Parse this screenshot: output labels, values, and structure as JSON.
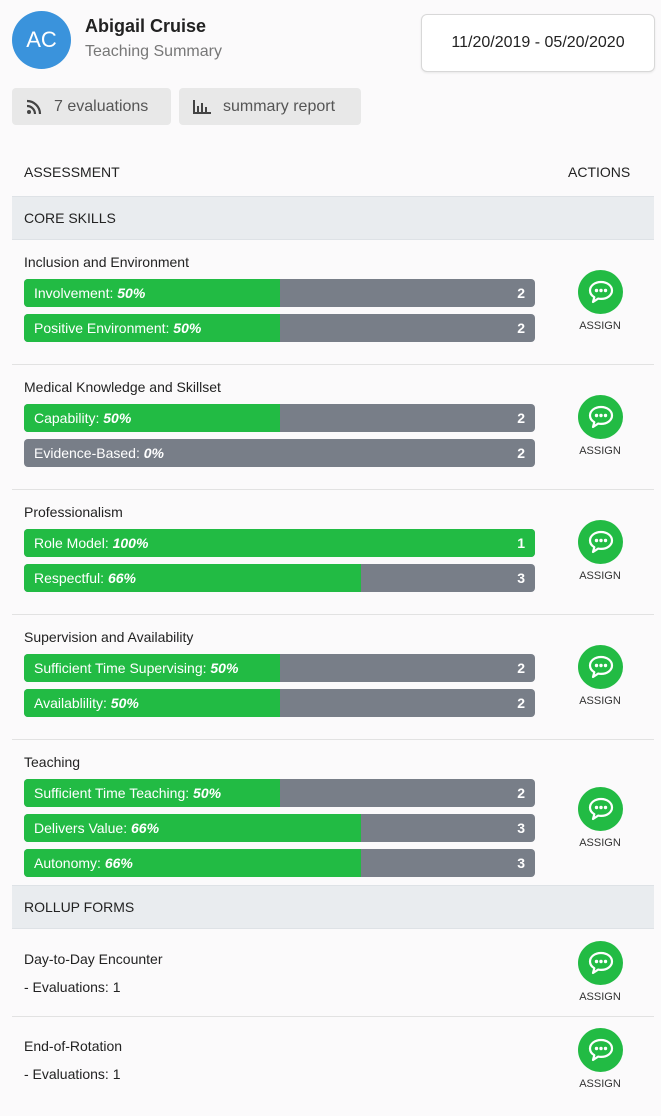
{
  "profile": {
    "initials": "AC",
    "name": "Abigail Cruise",
    "subtitle": "Teaching Summary",
    "date_range": "11/20/2019 - 05/20/2020"
  },
  "chips": {
    "evaluations": "7 evaluations",
    "report": "summary report"
  },
  "table": {
    "col_assessment": "ASSESSMENT",
    "col_actions": "ACTIONS"
  },
  "sections": {
    "core": "CORE SKILLS",
    "rollup": "ROLLUP FORMS"
  },
  "assign_label": "ASSIGN",
  "categories": [
    {
      "title": "Inclusion and Environment",
      "bars": [
        {
          "label": "Involvement:",
          "pct": "50%",
          "fraction": 0.5,
          "count": "2"
        },
        {
          "label": "Positive Environment:",
          "pct": "50%",
          "fraction": 0.5,
          "count": "2"
        }
      ]
    },
    {
      "title": "Medical Knowledge and Skillset",
      "bars": [
        {
          "label": "Capability:",
          "pct": "50%",
          "fraction": 0.5,
          "count": "2"
        },
        {
          "label": "Evidence-Based:",
          "pct": "0%",
          "fraction": 0,
          "count": "2"
        }
      ]
    },
    {
      "title": "Professionalism",
      "bars": [
        {
          "label": "Role Model:",
          "pct": "100%",
          "fraction": 1,
          "count": "1"
        },
        {
          "label": "Respectful:",
          "pct": "66%",
          "fraction": 0.66,
          "count": "3"
        }
      ]
    },
    {
      "title": "Supervision and Availability",
      "bars": [
        {
          "label": "Sufficient Time Supervising:",
          "pct": "50%",
          "fraction": 0.5,
          "count": "2"
        },
        {
          "label": "Availablility:",
          "pct": "50%",
          "fraction": 0.5,
          "count": "2"
        }
      ]
    },
    {
      "title": "Teaching",
      "bars": [
        {
          "label": "Sufficient Time Teaching:",
          "pct": "50%",
          "fraction": 0.5,
          "count": "2"
        },
        {
          "label": "Delivers Value:",
          "pct": "66%",
          "fraction": 0.66,
          "count": "3"
        },
        {
          "label": "Autonomy:",
          "pct": "66%",
          "fraction": 0.66,
          "count": "3"
        }
      ]
    }
  ],
  "rollups": [
    {
      "title": "Day-to-Day Encounter",
      "detail": "- Evaluations: 1"
    },
    {
      "title": "End-of-Rotation",
      "detail": "- Evaluations: 1"
    }
  ],
  "colors": {
    "accent_green": "#22bb44",
    "bar_grey": "#787e88",
    "avatar_blue": "#3a93dc"
  },
  "icons": {
    "evaluations": "rss-feed-icon",
    "report": "bar-chart-icon",
    "assign": "chat-bubble-icon"
  }
}
